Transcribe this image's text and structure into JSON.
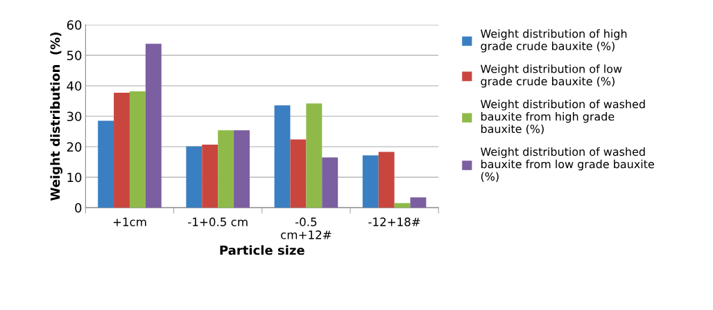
{
  "chart_data": {
    "type": "bar",
    "xlabel": "Particle size",
    "ylabel": "Weight distribution  (%)",
    "categories": [
      "+1cm",
      "-1+0.5 cm",
      "-0.5 cm+12#",
      "-12+18#"
    ],
    "series": [
      {
        "name": "Weight distribution of high grade crude bauxite (%)",
        "color": "#3a7fc1",
        "values": [
          28.5,
          20.1,
          33.6,
          17.2
        ]
      },
      {
        "name": "Weight distribution of low grade crude bauxite (%)",
        "color": "#c9463f",
        "values": [
          37.7,
          20.7,
          22.4,
          18.3
        ]
      },
      {
        "name": "Weight distribution of washed bauxite from high grade bauxite (%)",
        "color": "#8fba4a",
        "values": [
          38.2,
          25.4,
          34.2,
          1.5
        ]
      },
      {
        "name": "Weight distribution of washed bauxite from low grade bauxite (%)",
        "color": "#7b5fa0",
        "values": [
          53.8,
          25.4,
          16.5,
          3.4
        ]
      }
    ],
    "ylim": [
      0,
      60
    ],
    "yticks": [
      0,
      10,
      20,
      30,
      40,
      50,
      60
    ],
    "grid": "y",
    "legend": "right"
  }
}
